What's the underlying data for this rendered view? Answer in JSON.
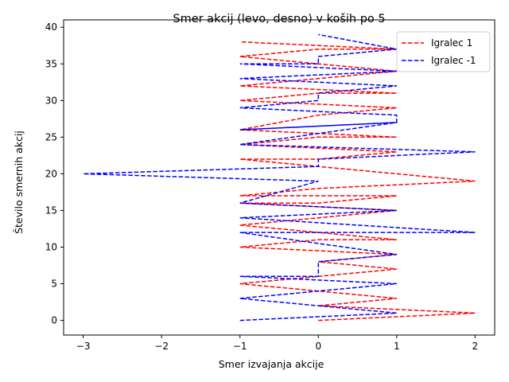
{
  "chart_data": {
    "type": "line",
    "title": "Smer akcij (levo, desno) v koših po 5",
    "xlabel": "Smer izvajanja akcije",
    "ylabel": "Število smernih akcij",
    "xlim": [
      -3.25,
      2.25
    ],
    "ylim": [
      -2,
      41
    ],
    "xticks": [
      -3,
      -2,
      -1,
      0,
      1,
      2
    ],
    "yticks": [
      0,
      5,
      10,
      15,
      20,
      25,
      30,
      35,
      40
    ],
    "grid": false,
    "legend_position": "top-right",
    "series": [
      {
        "name": "Igralec 1",
        "color": "#ff0000",
        "dash": "dashed",
        "x": [
          0,
          2,
          0,
          1,
          -1,
          0,
          1,
          0,
          1,
          -1,
          0,
          1,
          -1,
          0,
          1,
          -1,
          0,
          1,
          -1,
          0,
          2,
          -1,
          0,
          1,
          -1,
          0,
          1,
          -1,
          0,
          1,
          -1,
          0,
          1,
          -1,
          0,
          1,
          -1,
          0,
          1,
          -1
        ],
        "y": [
          0,
          1,
          2,
          3,
          5,
          6,
          7,
          8,
          9,
          10,
          11,
          11,
          13,
          14,
          15,
          16,
          16,
          17,
          17,
          18,
          19,
          22,
          22,
          23,
          24,
          25,
          25,
          26,
          28,
          29,
          30,
          31,
          31,
          32,
          33,
          34,
          36,
          37,
          37,
          38
        ]
      },
      {
        "name": "Igralec -1",
        "color": "#0000ff",
        "dash": "dashed",
        "x": [
          -1,
          1,
          -1,
          1,
          -1,
          0,
          0,
          1,
          -1,
          2,
          -1,
          1,
          -1,
          0,
          0,
          -3,
          0,
          0,
          2,
          -1,
          1,
          -1,
          1,
          1,
          -1,
          0,
          0,
          1,
          -1,
          1,
          -1,
          0,
          0,
          1,
          0,
          0
        ],
        "y": [
          0,
          1,
          3,
          5,
          6,
          6,
          8,
          9,
          12,
          12,
          14,
          15,
          16,
          19,
          19,
          20,
          21,
          22,
          23,
          24,
          27,
          26,
          27,
          28,
          29,
          30,
          31,
          32,
          33,
          34,
          35,
          35,
          36,
          37,
          39,
          39
        ]
      }
    ]
  }
}
